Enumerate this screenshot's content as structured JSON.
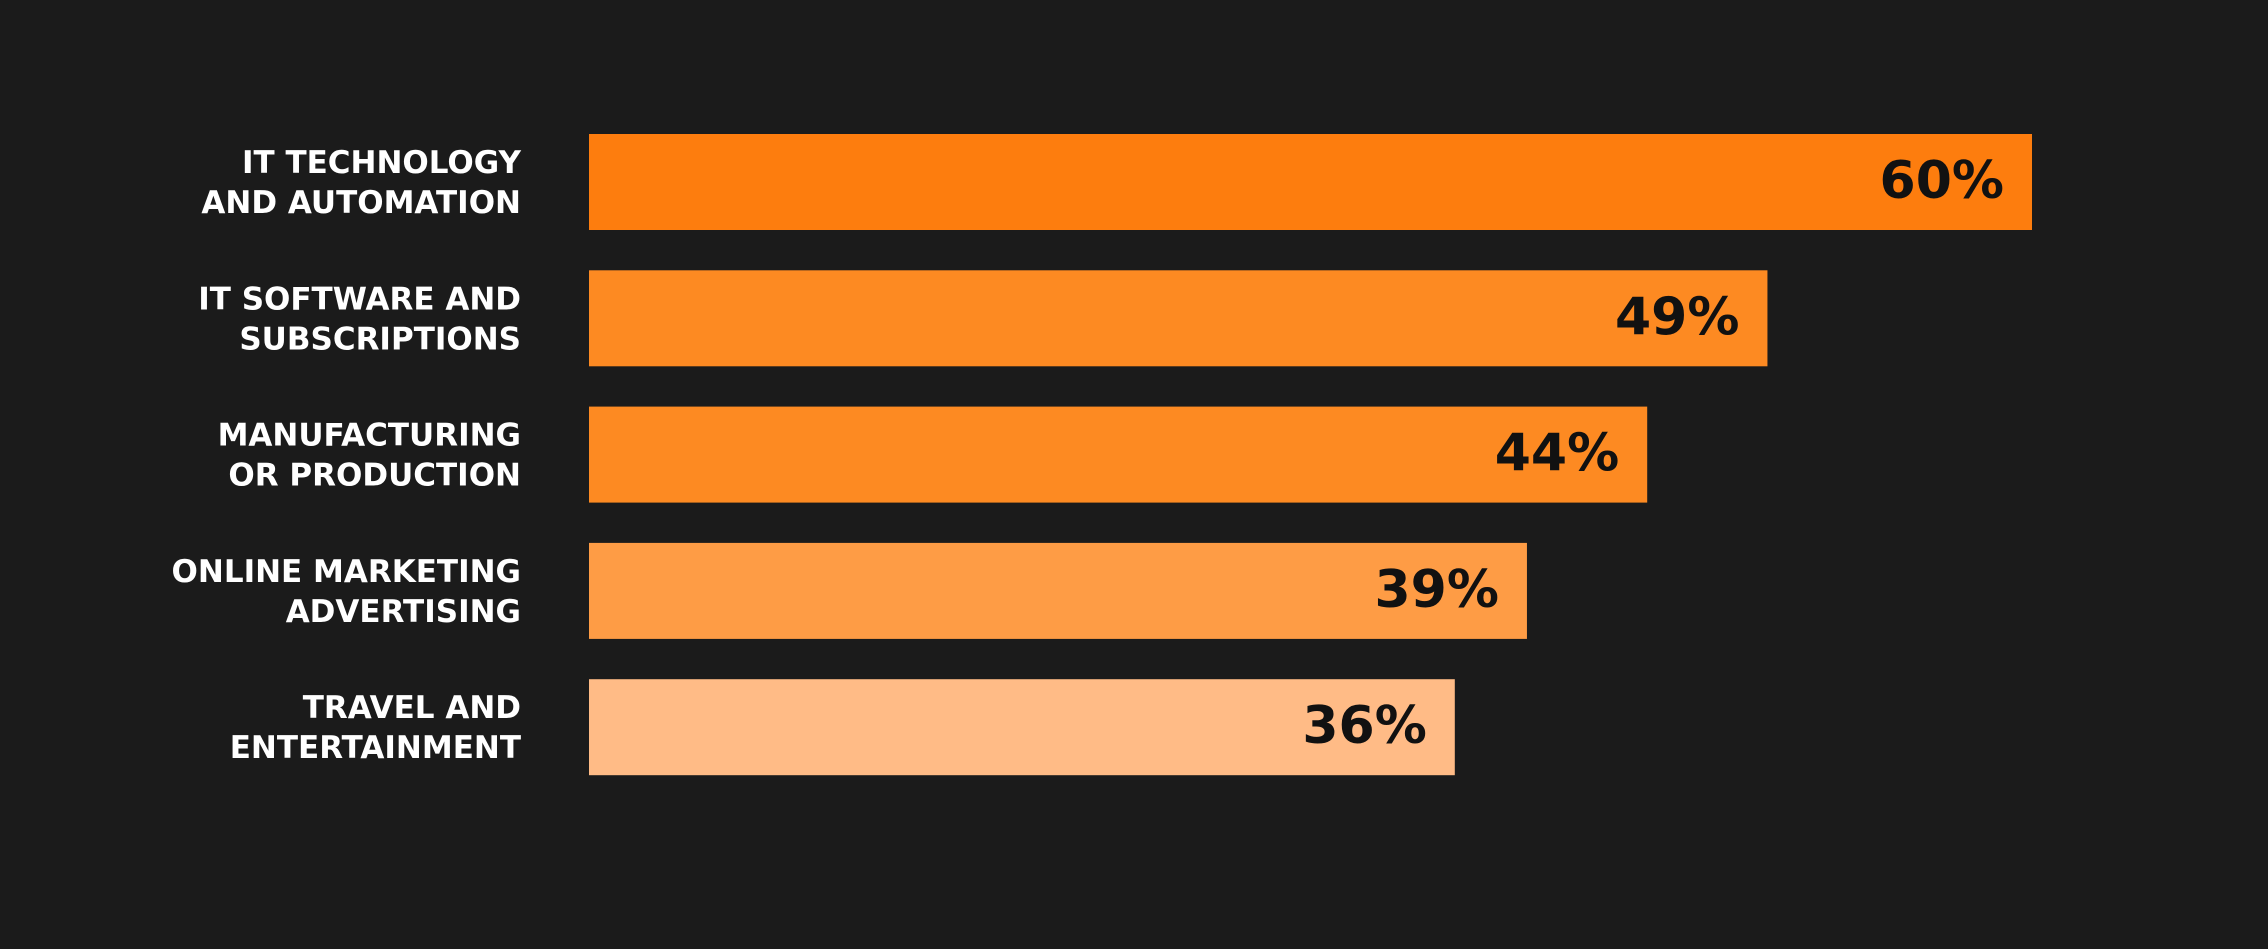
{
  "chart_data": {
    "type": "bar",
    "orientation": "horizontal",
    "categories": [
      "IT TECHNOLOGY\nAND AUTOMATION",
      "IT SOFTWARE AND\nSUBSCRIPTIONS",
      "MANUFACTURING\nOR PRODUCTION",
      "ONLINE MARKETING\nADVERTISING",
      "TRAVEL AND\nENTERTAINMENT"
    ],
    "values": [
      60,
      49,
      44,
      39,
      36
    ],
    "value_labels": [
      "60%",
      "49%",
      "44%",
      "39%",
      "36%"
    ],
    "colors": [
      "#fd7d0e",
      "#fd8a22",
      "#fd8a22",
      "#fe9c45",
      "#ffbb86"
    ]
  }
}
